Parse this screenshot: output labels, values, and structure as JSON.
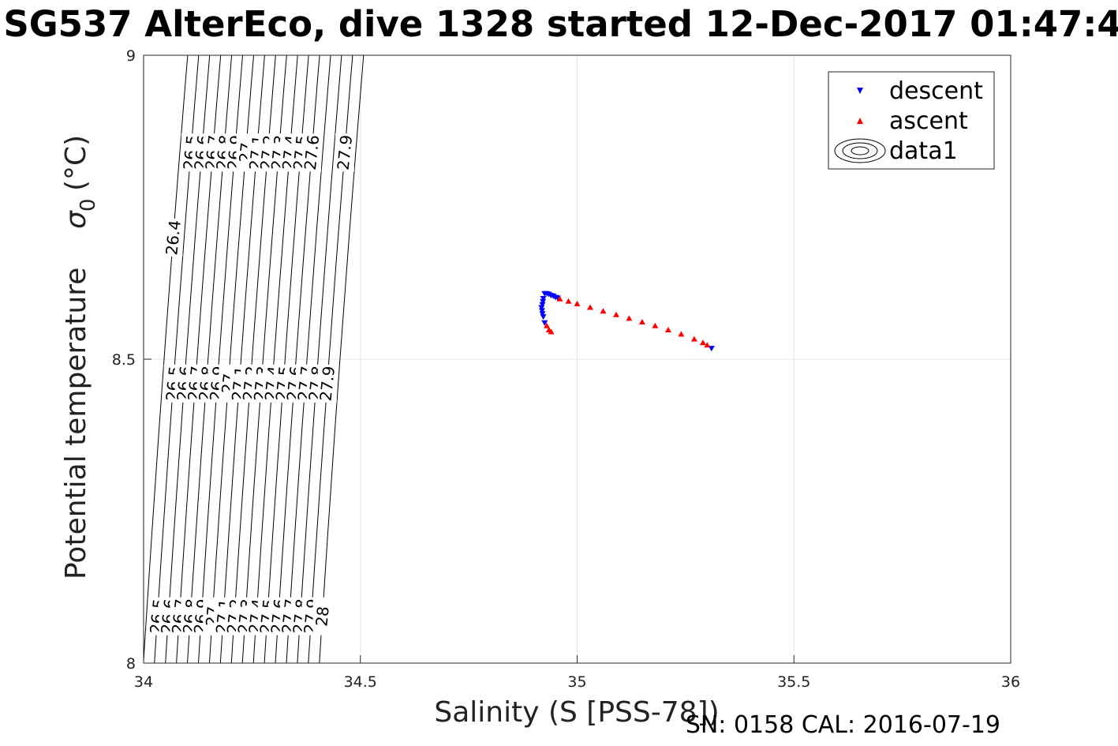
{
  "chart_data": {
    "type": "scatter",
    "title": "SG537 AlterEco, dive 1328 started 12-Dec-2017 01:47:4",
    "xlabel": "Salinity (S [PSS-78])",
    "ylabel_main": "Potential temperature",
    "ylabel_sigma": "σ",
    "ylabel_sub": "0",
    "ylabel_unit": "(°C)",
    "xlim": [
      34,
      36
    ],
    "ylim": [
      8,
      9
    ],
    "xticks": [
      "34",
      "34.5",
      "35",
      "35.5",
      "36"
    ],
    "yticks": [
      "8",
      "8.5",
      "9"
    ],
    "grid": true,
    "legend_position": "top-right",
    "legend": [
      "descent",
      "ascent",
      "data1"
    ],
    "footnote": "SN: 0158  CAL: 2016-07-19",
    "colors": {
      "descent": "#0000ff",
      "ascent": "#ff0000",
      "contour": "#000000",
      "grid": "#e6e6e6"
    },
    "contours": {
      "levels": [
        "26.4",
        "26.5",
        "26.6",
        "26.7",
        "26.8",
        "26.9",
        "27",
        "27.1",
        "27.2",
        "27.3",
        "27.4",
        "27.5",
        "27.6",
        "27.7",
        "27.8",
        "27.9",
        "28"
      ],
      "labels_top_row": [
        "26.5",
        "26.6",
        "26.7",
        "26.8",
        "26.9",
        "27",
        "27.1",
        "27.2",
        "27.3",
        "27.4",
        "27.5",
        "27.6",
        "27.9"
      ],
      "labels_middle_row": [
        "26.5",
        "26.6",
        "26.7",
        "26.8",
        "26.9",
        "27",
        "27.1",
        "27.2",
        "27.3",
        "27.4",
        "27.5",
        "27.6",
        "27.7",
        "27.8",
        "27.9"
      ],
      "labels_bottom_row": [
        "26.5",
        "26.6",
        "26.7",
        "26.8",
        "26.9",
        "27",
        "27.1",
        "27.2",
        "27.3",
        "27.4",
        "27.5",
        "27.6",
        "27.7",
        "27.8",
        "27.9",
        "28"
      ],
      "label_left_edge": "26.4"
    },
    "series": [
      {
        "name": "descent",
        "marker": "triangle-down",
        "points": [
          [
            34.925,
            8.608
          ],
          [
            34.93,
            8.608
          ],
          [
            34.935,
            8.607
          ],
          [
            34.94,
            8.605
          ],
          [
            34.945,
            8.604
          ],
          [
            34.95,
            8.602
          ],
          [
            34.955,
            8.601
          ],
          [
            34.922,
            8.6
          ],
          [
            34.921,
            8.595
          ],
          [
            34.92,
            8.59
          ],
          [
            34.918,
            8.585
          ],
          [
            34.919,
            8.58
          ],
          [
            34.92,
            8.575
          ],
          [
            34.922,
            8.57
          ],
          [
            34.925,
            8.56
          ],
          [
            35.31,
            8.518
          ]
        ]
      },
      {
        "name": "ascent",
        "marker": "triangle-up",
        "points": [
          [
            34.93,
            8.555
          ],
          [
            34.935,
            8.548
          ],
          [
            34.94,
            8.545
          ],
          [
            34.96,
            8.599
          ],
          [
            34.98,
            8.595
          ],
          [
            35.0,
            8.591
          ],
          [
            35.03,
            8.585
          ],
          [
            35.06,
            8.579
          ],
          [
            35.09,
            8.573
          ],
          [
            35.12,
            8.567
          ],
          [
            35.15,
            8.561
          ],
          [
            35.18,
            8.555
          ],
          [
            35.21,
            8.548
          ],
          [
            35.24,
            8.541
          ],
          [
            35.27,
            8.533
          ],
          [
            35.29,
            8.527
          ],
          [
            35.3,
            8.523
          ]
        ]
      }
    ]
  }
}
